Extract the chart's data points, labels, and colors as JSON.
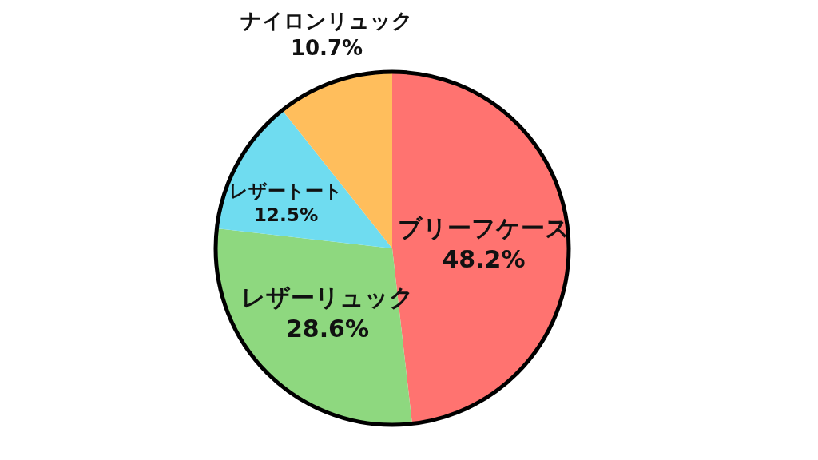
{
  "chart_data": {
    "type": "pie",
    "categories": [
      "ブリーフケース",
      "レザーリュック",
      "レザートート",
      "ナイロンリュック"
    ],
    "values": [
      48.2,
      28.6,
      12.5,
      10.7
    ],
    "colors": [
      "#ff7370",
      "#8ed87f",
      "#6fdcf0",
      "#ffbe5c"
    ],
    "value_labels": [
      "48.2%",
      "28.6%",
      "12.5%",
      "10.7%"
    ]
  }
}
